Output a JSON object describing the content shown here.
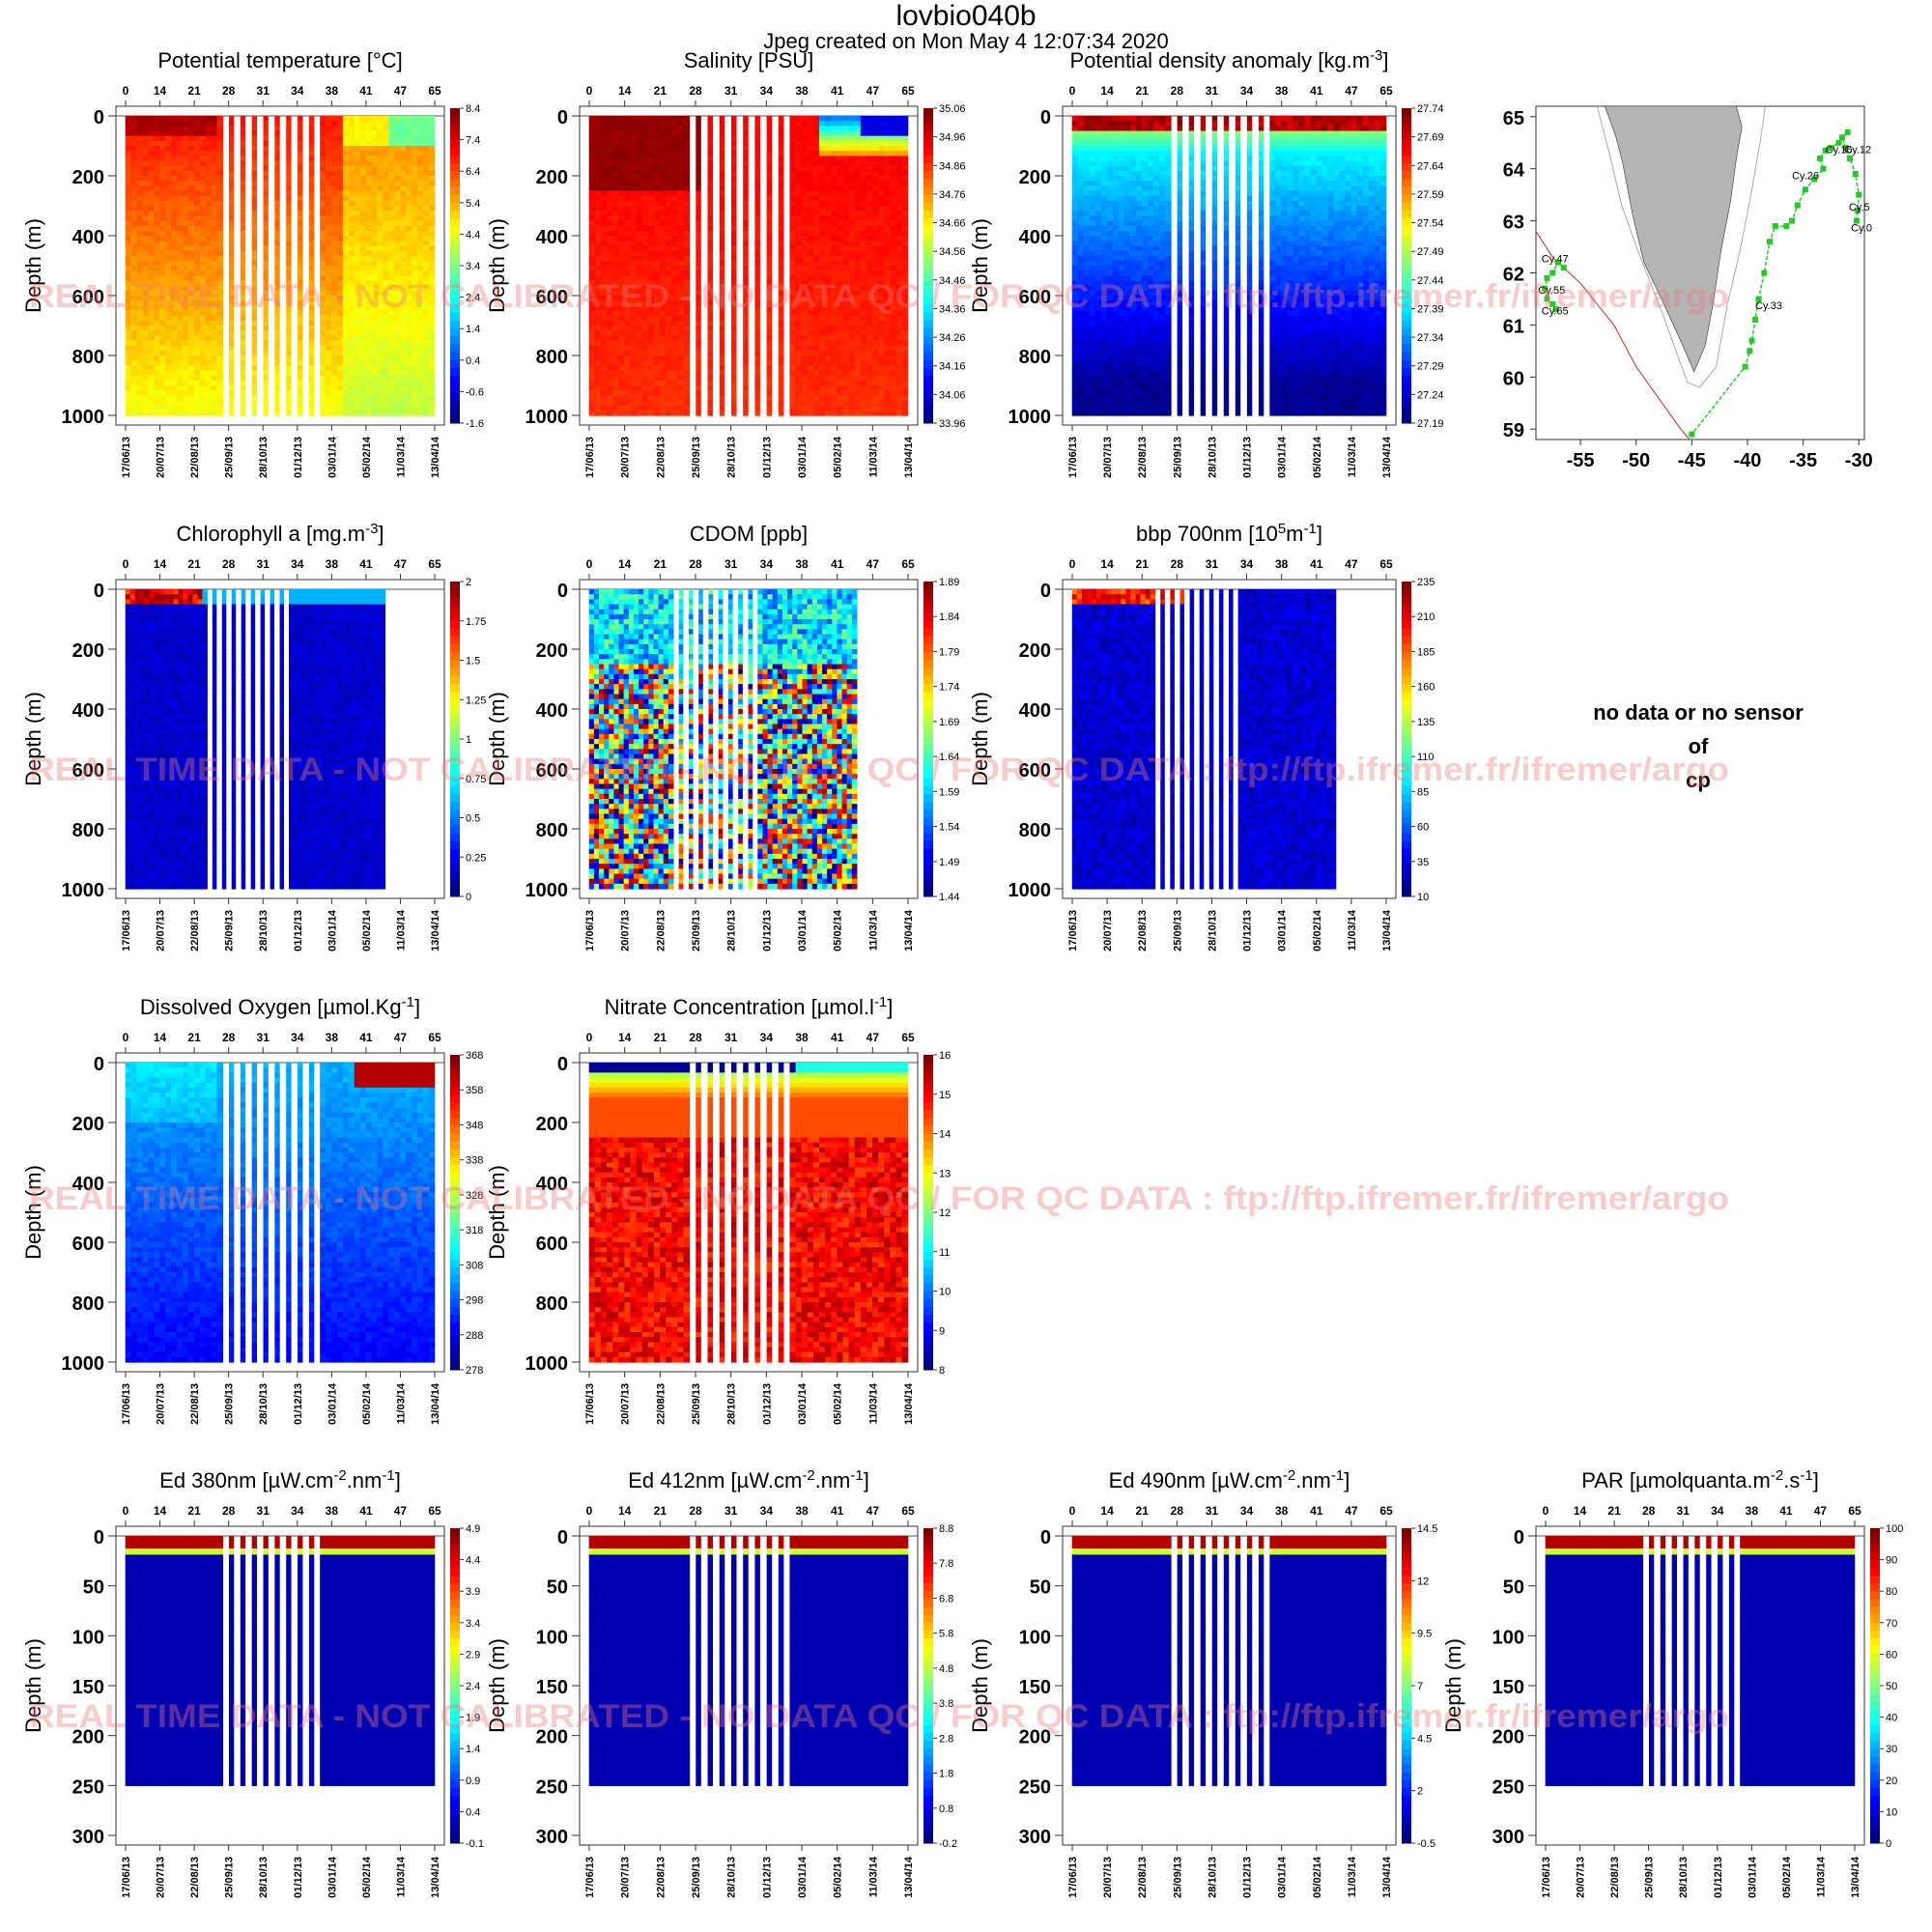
{
  "header": {
    "title": "lovbio040b",
    "subtitle": "Jpeg created on  Mon May  4 12:07:34 2020"
  },
  "watermark": "REAL TIME DATA - NOT CALIBRATED - NO DATA QC  /  FOR QC DATA : ftp://ftp.ifremer.fr/ifremer/argo",
  "nodata_panel": {
    "lines": [
      "no data or no sensor",
      "of",
      "cp"
    ]
  },
  "colors": {
    "watermark": "#f07878",
    "track": "#22cc22",
    "land": "#b4b4b4",
    "contour_red": "#cc2222"
  },
  "chart_data": [
    {
      "id": "potential-temperature",
      "type": "heatmap",
      "title": "Potential temperature [°C]",
      "ylabel": "Depth (m)",
      "ylim": [
        0,
        1000
      ],
      "yticks": [
        0,
        200,
        400,
        600,
        800,
        1000
      ],
      "top_ticks": [
        "0",
        "14",
        "21",
        "28",
        "31",
        "34",
        "38",
        "41",
        "47",
        "65"
      ],
      "date_ticks": [
        "17/06/13",
        "20/07/13",
        "22/08/13",
        "25/09/13",
        "28/10/13",
        "01/12/13",
        "03/01/14",
        "05/02/14",
        "11/03/14",
        "13/04/14"
      ],
      "colorbar": [
        "8.4",
        "7.4",
        "6.4",
        "5.4",
        "4.4",
        "3.4",
        "2.4",
        "1.4",
        "0.4",
        "-0.6",
        "-1.6"
      ],
      "field": "temp"
    },
    {
      "id": "salinity",
      "type": "heatmap",
      "title": "Salinity [PSU]",
      "ylabel": "Depth (m)",
      "ylim": [
        0,
        1000
      ],
      "yticks": [
        0,
        200,
        400,
        600,
        800,
        1000
      ],
      "top_ticks": [
        "0",
        "14",
        "21",
        "28",
        "31",
        "34",
        "38",
        "41",
        "47",
        "65"
      ],
      "date_ticks": [
        "17/06/13",
        "20/07/13",
        "22/08/13",
        "25/09/13",
        "28/10/13",
        "01/12/13",
        "03/01/14",
        "05/02/14",
        "11/03/14",
        "13/04/14"
      ],
      "colorbar": [
        "35.06",
        "34.96",
        "34.86",
        "34.76",
        "34.66",
        "34.56",
        "34.46",
        "34.36",
        "34.26",
        "34.16",
        "34.06",
        "33.96"
      ],
      "field": "sal"
    },
    {
      "id": "potential-density",
      "type": "heatmap",
      "title": "Potential density anomaly [kg.m",
      "title_sup": "-3",
      "title_end": "]",
      "ylabel": "Depth (m)",
      "ylim": [
        0,
        1000
      ],
      "yticks": [
        0,
        200,
        400,
        600,
        800,
        1000
      ],
      "top_ticks": [
        "0",
        "14",
        "21",
        "28",
        "31",
        "34",
        "38",
        "41",
        "47",
        "65"
      ],
      "date_ticks": [
        "17/06/13",
        "20/07/13",
        "22/08/13",
        "25/09/13",
        "28/10/13",
        "01/12/13",
        "03/01/14",
        "05/02/14",
        "11/03/14",
        "13/04/14"
      ],
      "colorbar": [
        "27.74",
        "27.69",
        "27.64",
        "27.59",
        "27.54",
        "27.49",
        "27.44",
        "27.39",
        "27.34",
        "27.29",
        "27.24",
        "27.19"
      ],
      "field": "dens"
    },
    {
      "id": "chlorophyll",
      "type": "heatmap",
      "title": "Chlorophyll a [mg.m",
      "title_sup": "-3",
      "title_end": "]",
      "ylabel": "Depth (m)",
      "ylim": [
        0,
        1000
      ],
      "yticks": [
        0,
        200,
        400,
        600,
        800,
        1000
      ],
      "top_ticks": [
        "0",
        "14",
        "21",
        "28",
        "31",
        "34",
        "38",
        "41",
        "47",
        "65"
      ],
      "date_ticks": [
        "17/06/13",
        "20/07/13",
        "22/08/13",
        "25/09/13",
        "28/10/13",
        "01/12/13",
        "03/01/14",
        "05/02/14",
        "11/03/14",
        "13/04/14"
      ],
      "colorbar": [
        "2",
        "1.75",
        "1.5",
        "1.25",
        "1",
        "0.75",
        "0.5",
        "0.25",
        "0"
      ],
      "field": "chl"
    },
    {
      "id": "cdom",
      "type": "heatmap",
      "title": "CDOM  [ppb]",
      "ylabel": "Depth (m)",
      "ylim": [
        0,
        1000
      ],
      "yticks": [
        0,
        200,
        400,
        600,
        800,
        1000
      ],
      "top_ticks": [
        "0",
        "14",
        "21",
        "28",
        "31",
        "34",
        "38",
        "41",
        "47",
        "65"
      ],
      "date_ticks": [
        "17/06/13",
        "20/07/13",
        "22/08/13",
        "25/09/13",
        "28/10/13",
        "01/12/13",
        "03/01/14",
        "05/02/14",
        "11/03/14",
        "13/04/14"
      ],
      "colorbar": [
        "1.89",
        "1.84",
        "1.79",
        "1.74",
        "1.69",
        "1.64",
        "1.59",
        "1.54",
        "1.49",
        "1.44"
      ],
      "field": "cdom"
    },
    {
      "id": "bbp700",
      "type": "heatmap",
      "title": "bbp 700nm [10",
      "title_sup": "5",
      "title_mid": "m",
      "title_sup2": "-1",
      "title_end": "]",
      "ylabel": "Depth (m)",
      "ylim": [
        0,
        1000
      ],
      "yticks": [
        0,
        200,
        400,
        600,
        800,
        1000
      ],
      "top_ticks": [
        "0",
        "14",
        "21",
        "28",
        "31",
        "34",
        "38",
        "41",
        "47",
        "65"
      ],
      "date_ticks": [
        "17/06/13",
        "20/07/13",
        "22/08/13",
        "25/09/13",
        "28/10/13",
        "01/12/13",
        "03/01/14",
        "05/02/14",
        "11/03/14",
        "13/04/14"
      ],
      "colorbar": [
        "235",
        "210",
        "185",
        "160",
        "135",
        "110",
        "85",
        "60",
        "35",
        "10"
      ],
      "field": "bbp"
    },
    {
      "id": "oxygen",
      "type": "heatmap",
      "title": "Dissolved Oxygen [µmol.Kg",
      "title_sup": "-1",
      "title_end": "]",
      "ylabel": "Depth (m)",
      "ylim": [
        0,
        1000
      ],
      "yticks": [
        0,
        200,
        400,
        600,
        800,
        1000
      ],
      "top_ticks": [
        "0",
        "14",
        "21",
        "28",
        "31",
        "34",
        "38",
        "41",
        "47",
        "65"
      ],
      "date_ticks": [
        "17/06/13",
        "20/07/13",
        "22/08/13",
        "25/09/13",
        "28/10/13",
        "01/12/13",
        "03/01/14",
        "05/02/14",
        "11/03/14",
        "13/04/14"
      ],
      "colorbar": [
        "368",
        "358",
        "348",
        "338",
        "328",
        "318",
        "308",
        "298",
        "288",
        "278"
      ],
      "field": "oxy"
    },
    {
      "id": "nitrate",
      "type": "heatmap",
      "title": "Nitrate Concentration [µmol.l",
      "title_sup": "-1",
      "title_end": "]",
      "ylabel": "Depth (m)",
      "ylim": [
        0,
        1000
      ],
      "yticks": [
        0,
        200,
        400,
        600,
        800,
        1000
      ],
      "top_ticks": [
        "0",
        "14",
        "21",
        "28",
        "31",
        "34",
        "38",
        "41",
        "47",
        "65"
      ],
      "date_ticks": [
        "17/06/13",
        "20/07/13",
        "22/08/13",
        "25/09/13",
        "28/10/13",
        "01/12/13",
        "03/01/14",
        "05/02/14",
        "11/03/14",
        "13/04/14"
      ],
      "colorbar": [
        "16",
        "15",
        "14",
        "13",
        "12",
        "11",
        "10",
        "9",
        "8"
      ],
      "field": "no3"
    },
    {
      "id": "ed380",
      "type": "heatmap",
      "title": "Ed 380nm [µW.cm",
      "title_sup": "-2",
      "title_mid": ".nm",
      "title_sup2": "-1",
      "title_end": "]",
      "ylabel": "Depth (m)",
      "ylim": [
        0,
        300
      ],
      "yticks": [
        0,
        50,
        100,
        150,
        200,
        250,
        300
      ],
      "top_ticks": [
        "0",
        "14",
        "21",
        "28",
        "31",
        "34",
        "38",
        "41",
        "47",
        "65"
      ],
      "date_ticks": [
        "17/06/13",
        "20/07/13",
        "22/08/13",
        "25/09/13",
        "28/10/13",
        "01/12/13",
        "03/01/14",
        "05/02/14",
        "11/03/14",
        "13/04/14"
      ],
      "colorbar": [
        "4.9",
        "4.4",
        "3.9",
        "3.4",
        "2.9",
        "2.4",
        "1.9",
        "1.4",
        "0.9",
        "0.4",
        "-0.1"
      ],
      "field": "light"
    },
    {
      "id": "ed412",
      "type": "heatmap",
      "title": "Ed 412nm [µW.cm",
      "title_sup": "-2",
      "title_mid": ".nm",
      "title_sup2": "-1",
      "title_end": "]",
      "ylabel": "Depth (m)",
      "ylim": [
        0,
        300
      ],
      "yticks": [
        0,
        50,
        100,
        150,
        200,
        250,
        300
      ],
      "top_ticks": [
        "0",
        "14",
        "21",
        "28",
        "31",
        "34",
        "38",
        "41",
        "47",
        "65"
      ],
      "date_ticks": [
        "17/06/13",
        "20/07/13",
        "22/08/13",
        "25/09/13",
        "28/10/13",
        "01/12/13",
        "03/01/14",
        "05/02/14",
        "11/03/14",
        "13/04/14"
      ],
      "colorbar": [
        "8.8",
        "7.8",
        "6.8",
        "5.8",
        "4.8",
        "3.8",
        "2.8",
        "1.8",
        "0.8",
        "-0.2"
      ],
      "field": "light"
    },
    {
      "id": "ed490",
      "type": "heatmap",
      "title": "Ed 490nm [µW.cm",
      "title_sup": "-2",
      "title_mid": ".nm",
      "title_sup2": "-1",
      "title_end": "]",
      "ylabel": "Depth (m)",
      "ylim": [
        0,
        300
      ],
      "yticks": [
        0,
        50,
        100,
        150,
        200,
        250,
        300
      ],
      "top_ticks": [
        "0",
        "14",
        "21",
        "28",
        "31",
        "34",
        "38",
        "41",
        "47",
        "65"
      ],
      "date_ticks": [
        "17/06/13",
        "20/07/13",
        "22/08/13",
        "25/09/13",
        "28/10/13",
        "01/12/13",
        "03/01/14",
        "05/02/14",
        "11/03/14",
        "13/04/14"
      ],
      "colorbar": [
        "14.5",
        "12",
        "9.5",
        "7",
        "4.5",
        "2",
        "-0.5"
      ],
      "field": "light"
    },
    {
      "id": "par",
      "type": "heatmap",
      "title": "PAR [µmolquanta.m",
      "title_sup": "-2",
      "title_mid": ".s",
      "title_sup2": "-1",
      "title_end": "]",
      "ylabel": "Depth (m)",
      "ylim": [
        0,
        300
      ],
      "yticks": [
        0,
        50,
        100,
        150,
        200,
        250,
        300
      ],
      "top_ticks": [
        "0",
        "14",
        "21",
        "28",
        "31",
        "34",
        "38",
        "41",
        "47",
        "65"
      ],
      "date_ticks": [
        "17/06/13",
        "20/07/13",
        "22/08/13",
        "25/09/13",
        "28/10/13",
        "01/12/13",
        "03/01/14",
        "05/02/14",
        "11/03/14",
        "13/04/14"
      ],
      "colorbar": [
        "100",
        "90",
        "80",
        "70",
        "60",
        "50",
        "40",
        "30",
        "20",
        "10",
        "0"
      ],
      "field": "light"
    },
    {
      "id": "trajectory-map",
      "type": "scatter",
      "xlim": [
        -59,
        -29.5
      ],
      "ylim": [
        58.8,
        65.2
      ],
      "xticks": [
        -55,
        -50,
        -45,
        -40,
        -35,
        -30
      ],
      "yticks": [
        59,
        60,
        61,
        62,
        63,
        64,
        65
      ],
      "track": [
        [
          -30.2,
          63.0
        ],
        [
          -30.1,
          63.2
        ],
        [
          -30.0,
          63.5
        ],
        [
          -30.3,
          63.9
        ],
        [
          -30.8,
          64.2
        ],
        [
          -31.2,
          64.4
        ],
        [
          -31.5,
          64.6
        ],
        [
          -31.0,
          64.7
        ],
        [
          -31.8,
          64.5
        ],
        [
          -32.5,
          64.4
        ],
        [
          -33.0,
          64.35
        ],
        [
          -33.5,
          64.2
        ],
        [
          -33.2,
          64.0
        ],
        [
          -34.0,
          63.8
        ],
        [
          -34.8,
          63.6
        ],
        [
          -35.5,
          63.3
        ],
        [
          -36.0,
          63.0
        ],
        [
          -36.5,
          62.9
        ],
        [
          -37.5,
          62.9
        ],
        [
          -38.0,
          62.6
        ],
        [
          -38.5,
          62.0
        ],
        [
          -39.0,
          61.5
        ],
        [
          -39.3,
          61.1
        ],
        [
          -39.6,
          60.7
        ],
        [
          -39.8,
          60.5
        ],
        [
          -40.2,
          60.2
        ],
        [
          -45.0,
          58.9
        ]
      ],
      "track2": [
        [
          -56.5,
          62.1
        ],
        [
          -57.0,
          62.2
        ],
        [
          -57.5,
          62.0
        ],
        [
          -58.0,
          61.9
        ],
        [
          -58.2,
          61.7
        ],
        [
          -58.0,
          61.5
        ],
        [
          -57.5,
          61.4
        ],
        [
          -57.2,
          61.3
        ]
      ],
      "labels": [
        {
          "text": "Cy.12",
          "x": -31.3,
          "y": 64.3
        },
        {
          "text": "Cy.16",
          "x": -33.0,
          "y": 64.3
        },
        {
          "text": "Cy.26",
          "x": -36.0,
          "y": 63.8
        },
        {
          "text": "Cy.5",
          "x": -30.9,
          "y": 63.2
        },
        {
          "text": "Cy.0",
          "x": -30.7,
          "y": 62.8
        },
        {
          "text": "Cy.33",
          "x": -39.3,
          "y": 61.3
        },
        {
          "text": "Cy.47",
          "x": -58.5,
          "y": 62.2
        },
        {
          "text": "Cy.55",
          "x": -58.8,
          "y": 61.6
        },
        {
          "text": "Cy.65",
          "x": -58.5,
          "y": 61.2
        }
      ]
    }
  ]
}
